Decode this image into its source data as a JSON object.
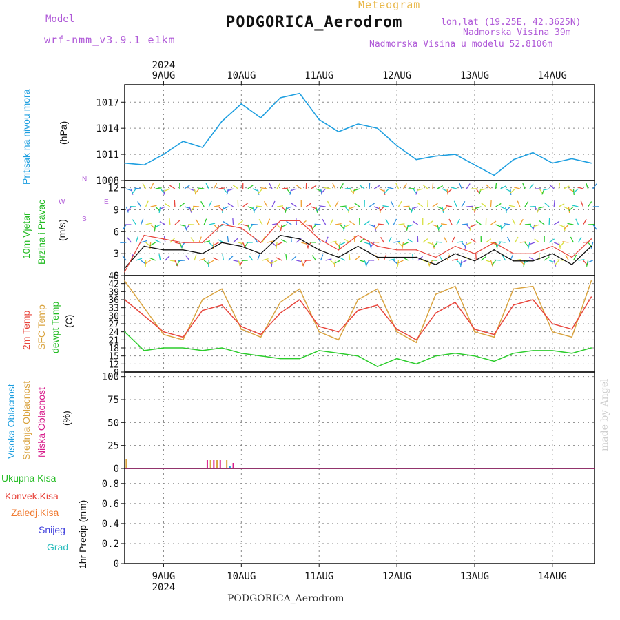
{
  "header": {
    "meteogram_label": "Meteogram",
    "station": "PODGORICA_Aerodrom",
    "model_label": "Model",
    "model_name": "wrf-nmm_v3.9.1 e1km",
    "lonlat": "lon,lat (19.25E, 42.3625N)",
    "elevation": "Nadmorska Visina 39m",
    "model_elevation": "Nadmorska Visina u modelu 52.8106m"
  },
  "footer": {
    "station": "PODGORICA_Aerodrom",
    "credit": "made by Angel"
  },
  "colors": {
    "pressure": "#1e9fe0",
    "temp2m": "#e8453c",
    "sfc": "#d9a33f",
    "dewpt": "#2bcc2b",
    "wind_mean": "#111111",
    "gust": "#e8453c",
    "grid": "#888888"
  },
  "chart_data": [
    {
      "type": "line",
      "panel": "pressure",
      "title": "",
      "x_axis": {
        "year": "2024",
        "day_labels": [
          "9AUG",
          "10AUG",
          "11AUG",
          "12AUG",
          "13AUG",
          "14AUG"
        ],
        "x_hours": [
          0,
          6,
          12,
          18,
          24,
          30,
          36,
          42,
          48,
          54,
          60,
          66,
          72,
          78,
          84,
          90,
          96,
          102,
          108,
          114,
          120,
          126,
          132,
          138,
          144
        ],
        "x_note": "hours from 08 AUG 12 UTC"
      },
      "y_labels": [
        "Pritisak na nivou mora",
        "(hPa)"
      ],
      "ylim": [
        1008,
        1019
      ],
      "yticks": [
        1008,
        1011,
        1014,
        1017
      ],
      "series": [
        {
          "values": [
            1010.0,
            1009.8,
            1011.0,
            1012.5,
            1011.8,
            1014.8,
            1016.8,
            1015.2,
            1017.5,
            1018.0,
            1015.0,
            1013.6,
            1014.5,
            1014.0,
            1012.0,
            1010.4,
            1010.8,
            1011.0,
            1009.8,
            1008.6,
            1010.4,
            1011.2,
            1010.0,
            1010.5,
            1010.0
          ]
        }
      ]
    },
    {
      "type": "line",
      "panel": "wind",
      "title": "",
      "y_labels": [
        "10m Vjetar",
        "Brzina i Pravac",
        "(m/s)"
      ],
      "compass": [
        "N",
        "E",
        "S",
        "W"
      ],
      "ylim": [
        0,
        13
      ],
      "yticks": [
        0,
        3,
        6,
        9,
        12
      ],
      "series": [
        {
          "values": [
            1.0,
            4.0,
            3.5,
            3.5,
            3.0,
            4.5,
            4.0,
            3.0,
            5.5,
            5.0,
            3.5,
            2.5,
            4.0,
            2.5,
            2.5,
            2.5,
            1.5,
            3.0,
            2.0,
            3.5,
            2.0,
            2.0,
            3.0,
            1.5,
            4.0
          ]
        },
        {
          "values": [
            0.5,
            5.5,
            5.0,
            4.5,
            4.5,
            7.0,
            6.5,
            4.5,
            7.5,
            7.5,
            5.0,
            3.5,
            5.5,
            4.0,
            3.5,
            3.5,
            2.5,
            4.0,
            3.0,
            4.5,
            3.0,
            3.0,
            4.0,
            2.5,
            5.0
          ]
        }
      ]
    },
    {
      "type": "line",
      "panel": "temperature",
      "title": "",
      "y_labels": [
        "2m Temp",
        "SFC Temp",
        "dewpt Temp",
        "(C)"
      ],
      "ylim": [
        9,
        45
      ],
      "yticks": [
        9,
        12,
        15,
        18,
        21,
        24,
        27,
        30,
        33,
        36,
        39,
        42,
        45
      ],
      "series": [
        {
          "values": [
            36,
            30,
            24,
            22,
            32,
            34,
            26,
            23,
            31,
            36,
            26,
            24,
            32,
            34,
            25,
            21,
            31,
            35,
            25,
            23,
            34,
            36,
            27,
            25,
            37
          ]
        },
        {
          "values": [
            43,
            33,
            23,
            21,
            36,
            40,
            25,
            22,
            35,
            40,
            24,
            21,
            36,
            40,
            24,
            20,
            38,
            41,
            24,
            22,
            40,
            41,
            24,
            22,
            43
          ]
        },
        {
          "values": [
            24,
            17,
            18,
            18,
            17,
            18,
            16,
            15,
            14,
            14,
            17,
            16,
            15,
            11,
            14,
            12,
            15,
            16,
            15,
            13,
            16,
            17,
            17,
            16,
            18
          ]
        }
      ]
    },
    {
      "type": "bar",
      "panel": "cloud",
      "title": "",
      "y_labels": [
        "Visoka Oblacnost",
        "Srednja Oblacnost",
        "Niska Oblacnost",
        "(%)"
      ],
      "ylim": [
        0,
        105
      ],
      "yticks": [
        0,
        25,
        50,
        75,
        100
      ],
      "bars": [
        {
          "x_hour": 0.5,
          "value": 10,
          "layer": "srednja"
        },
        {
          "x_hour": 25.5,
          "value": 9,
          "layer": "niska"
        },
        {
          "x_hour": 26.5,
          "value": 9,
          "layer": "srednja"
        },
        {
          "x_hour": 27.5,
          "value": 9,
          "layer": "niska"
        },
        {
          "x_hour": 28.5,
          "value": 9,
          "layer": "srednja"
        },
        {
          "x_hour": 29.5,
          "value": 9,
          "layer": "niska"
        },
        {
          "x_hour": 31.5,
          "value": 9,
          "layer": "srednja"
        },
        {
          "x_hour": 32.5,
          "value": 3,
          "layer": "visoka"
        },
        {
          "x_hour": 33.5,
          "value": 6,
          "layer": "niska"
        }
      ]
    },
    {
      "type": "bar",
      "panel": "precipitation",
      "title": "",
      "y_labels": [
        "Ukupna Kisa",
        "Konvek.Kisa",
        "Zaledj.Kisa",
        "Snijeg",
        "Grad",
        "1hr Precip (mm)"
      ],
      "ylim": [
        0,
        0.95
      ],
      "yticks": [
        0,
        0.2,
        0.4,
        0.6,
        0.8
      ],
      "values": []
    }
  ]
}
